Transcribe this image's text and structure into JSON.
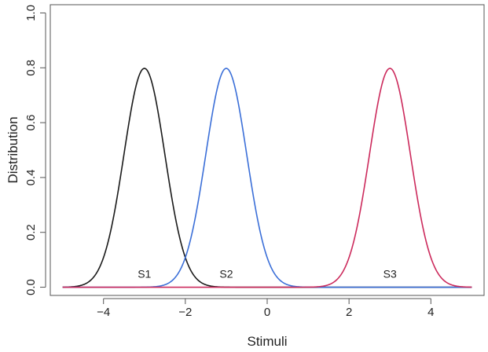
{
  "chart_data": {
    "type": "line",
    "title": "",
    "xlabel": "Stimuli",
    "ylabel": "Distribution",
    "xlim": [
      -5.3,
      5.3
    ],
    "ylim": [
      -0.03,
      1.03
    ],
    "grid": false,
    "x_ticks": [
      -4,
      -2,
      0,
      2,
      4
    ],
    "x_tick_labels": [
      "−4",
      "−2",
      "0",
      "2",
      "4"
    ],
    "y_ticks": [
      0.0,
      0.2,
      0.4,
      0.6,
      0.8,
      1.0
    ],
    "y_tick_labels": [
      "0.0",
      "0.2",
      "0.4",
      "0.6",
      "0.8",
      "1.0"
    ],
    "x_range": [
      -5,
      5
    ],
    "series": [
      {
        "mean": -3,
        "sd": 0.5,
        "peak": 0.798,
        "color": "#1a1a1a"
      },
      {
        "mean": -1,
        "sd": 0.5,
        "peak": 0.798,
        "color": "#3b6fd8"
      },
      {
        "mean": 3,
        "sd": 0.5,
        "peak": 0.798,
        "color": "#cc2a5c"
      }
    ],
    "annotations": [
      {
        "text": "S1",
        "x": -3,
        "y": 0.045
      },
      {
        "text": "S2",
        "x": -1,
        "y": 0.045
      },
      {
        "text": "S3",
        "x": 3,
        "y": 0.045
      }
    ]
  }
}
